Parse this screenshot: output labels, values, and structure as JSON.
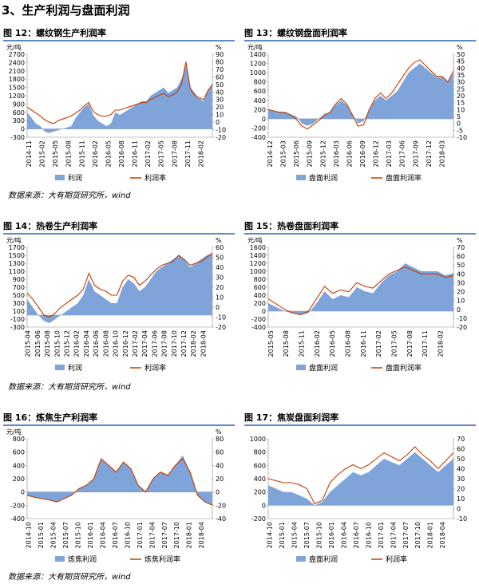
{
  "section_title": "3、生产利润与盘面利润",
  "sources": [
    "数据来源：大有期货研究所，wind",
    "数据来源：大有期货研究所，wind",
    "数据来源：大有期货研究所，wind"
  ],
  "colors": {
    "area": "#7fa4d9",
    "line": "#c23b00",
    "rule": "#5b8cc8"
  },
  "chart_data": [
    {
      "figure": "图 12：螺纹钢生产利润率",
      "type": "area+line",
      "left_unit": "元/吨",
      "right_unit": "%",
      "left_ylim": [
        -300,
        2700
      ],
      "left_ticks": [
        "2700",
        "2400",
        "2100",
        "1800",
        "1500",
        "1200",
        "900",
        "600",
        "300",
        "0",
        "-300"
      ],
      "right_ylim": [
        -20,
        90
      ],
      "right_ticks": [
        "90",
        "80",
        "70",
        "60",
        "50",
        "40",
        "30",
        "20",
        "10",
        "0",
        "-10",
        "-20"
      ],
      "x_labels": [
        "2014-11",
        "2015-02",
        "2015-05",
        "2015-08",
        "2015-11",
        "2016-02",
        "2016-05",
        "2016-08",
        "2016-11",
        "2017-02",
        "2017-05",
        "2017-08",
        "2017-11",
        "2018-02"
      ],
      "series": [
        {
          "name": "利润",
          "kind": "area",
          "axis": "left",
          "values": [
            600,
            400,
            200,
            100,
            -100,
            -150,
            -100,
            -50,
            0,
            50,
            100,
            400,
            600,
            800,
            900,
            500,
            300,
            200,
            100,
            200,
            600,
            500,
            600,
            700,
            800,
            900,
            1000,
            1000,
            1200,
            1300,
            1400,
            1500,
            1300,
            1400,
            1500,
            1800,
            2300,
            1500,
            1300,
            1100,
            1000,
            1400,
            1600
          ]
        },
        {
          "name": "利润率",
          "kind": "line",
          "axis": "right",
          "values": [
            20,
            16,
            12,
            8,
            3,
            0,
            -2,
            2,
            4,
            6,
            8,
            12,
            16,
            22,
            26,
            14,
            10,
            8,
            8,
            10,
            16,
            16,
            18,
            20,
            22,
            24,
            26,
            26,
            30,
            33,
            36,
            38,
            34,
            36,
            40,
            50,
            80,
            44,
            36,
            32,
            30,
            42,
            50
          ]
        }
      ]
    },
    {
      "figure": "图 13：螺纹钢盘面利润率",
      "type": "area+line",
      "left_unit": "元/吨",
      "right_unit": "%",
      "left_ylim": [
        -400,
        1400
      ],
      "left_ticks": [
        "1400",
        "1200",
        "1000",
        "800",
        "600",
        "400",
        "200",
        "0",
        "-200",
        "-400"
      ],
      "right_ylim": [
        -10,
        50
      ],
      "right_ticks": [
        "50",
        "45",
        "40",
        "35",
        "30",
        "25",
        "20",
        "15",
        "10",
        "5",
        "0",
        "-5",
        "-10"
      ],
      "x_labels": [
        "2014-12",
        "2015-03",
        "2015-06",
        "2015-09",
        "2015-12",
        "2016-03",
        "2016-06",
        "2016-09",
        "2016-12",
        "2017-03",
        "2017-06",
        "2017-09",
        "2017-12",
        "2018-03"
      ],
      "series": [
        {
          "name": "盘面利润",
          "kind": "area",
          "axis": "left",
          "values": [
            200,
            180,
            150,
            150,
            100,
            50,
            -100,
            -150,
            -100,
            0,
            100,
            150,
            300,
            400,
            300,
            100,
            -100,
            -50,
            200,
            400,
            500,
            400,
            500,
            600,
            800,
            1000,
            1100,
            1200,
            1100,
            1000,
            900,
            900,
            800,
            1000
          ]
        },
        {
          "name": "盘面利润率",
          "kind": "line",
          "axis": "right",
          "values": [
            10,
            9,
            8,
            8,
            6,
            3,
            -2,
            -4,
            -1,
            2,
            6,
            8,
            14,
            18,
            14,
            6,
            -2,
            -1,
            10,
            18,
            22,
            18,
            22,
            28,
            34,
            40,
            44,
            46,
            42,
            38,
            34,
            34,
            30,
            38
          ]
        }
      ]
    },
    {
      "figure": "图 14：热卷生产利润率",
      "type": "area+line",
      "left_unit": "元/吨",
      "right_unit": "%",
      "left_ylim": [
        -300,
        1700
      ],
      "left_ticks": [
        "1700",
        "1500",
        "1300",
        "1100",
        "900",
        "700",
        "500",
        "300",
        "100",
        "-100",
        "-300"
      ],
      "right_ylim": [
        -20,
        60
      ],
      "right_ticks": [
        "60",
        "50",
        "40",
        "30",
        "20",
        "10",
        "0",
        "-10",
        "-20"
      ],
      "x_labels": [
        "2015-04",
        "2015-06",
        "2015-08",
        "2015-10",
        "2015-12",
        "2016-02",
        "2016-04",
        "2016-06",
        "2016-08",
        "2016-10",
        "2016-12",
        "2017-02",
        "2017-04",
        "2017-06",
        "2017-08",
        "2017-10",
        "2017-12",
        "2018-02",
        "2018-04"
      ],
      "series": [
        {
          "name": "利润",
          "kind": "area",
          "axis": "left",
          "values": [
            400,
            200,
            0,
            -150,
            -200,
            -100,
            0,
            100,
            200,
            300,
            500,
            900,
            600,
            500,
            400,
            300,
            300,
            700,
            900,
            800,
            600,
            700,
            900,
            1100,
            1200,
            1300,
            1400,
            1500,
            1400,
            1200,
            1300,
            1400,
            1500,
            1550
          ]
        },
        {
          "name": "利润率",
          "kind": "line",
          "axis": "right",
          "values": [
            14,
            8,
            0,
            -8,
            -10,
            -6,
            0,
            4,
            8,
            12,
            18,
            34,
            22,
            18,
            16,
            12,
            12,
            26,
            32,
            30,
            22,
            26,
            32,
            38,
            42,
            44,
            46,
            52,
            48,
            42,
            44,
            46,
            50,
            54
          ]
        }
      ]
    },
    {
      "figure": "图 15：热卷盘面利润率",
      "type": "area+line",
      "left_unit": "元/吨",
      "right_unit": "%",
      "left_ylim": [
        -400,
        1600
      ],
      "left_ticks": [
        "1600",
        "1400",
        "1200",
        "1000",
        "800",
        "600",
        "400",
        "200",
        "0",
        "-200",
        "-400"
      ],
      "right_ylim": [
        -20,
        70
      ],
      "right_ticks": [
        "70",
        "60",
        "50",
        "40",
        "30",
        "20",
        "10",
        "0",
        "-10",
        "-20"
      ],
      "x_labels": [
        "2015-05",
        "2015-08",
        "2015-11",
        "2016-02",
        "2016-05",
        "2016-08",
        "2016-11",
        "2017-02",
        "2017-05",
        "2017-08",
        "2017-11",
        "2018-02"
      ],
      "series": [
        {
          "name": "盘面利润",
          "kind": "area",
          "axis": "left",
          "values": [
            200,
            100,
            0,
            -50,
            -100,
            -50,
            200,
            500,
            300,
            400,
            350,
            600,
            500,
            450,
            700,
            900,
            1000,
            1200,
            1100,
            1000,
            1000,
            1000,
            900,
            950
          ]
        },
        {
          "name": "盘面利润率",
          "kind": "line",
          "axis": "right",
          "values": [
            12,
            6,
            0,
            -4,
            -6,
            -2,
            12,
            26,
            18,
            22,
            20,
            30,
            26,
            24,
            32,
            40,
            44,
            48,
            44,
            40,
            40,
            40,
            36,
            38
          ]
        }
      ]
    },
    {
      "figure": "图 16：炼焦生产利润率",
      "type": "area+line",
      "left_unit": "元/吨",
      "right_unit": "%",
      "left_ylim": [
        -400,
        800
      ],
      "left_ticks": [
        "800",
        "600",
        "400",
        "200",
        "0",
        "-200",
        "-400"
      ],
      "right_ylim": [
        -40,
        80
      ],
      "right_ticks": [
        "80",
        "60",
        "40",
        "20",
        "0",
        "-20",
        "-40"
      ],
      "x_labels": [
        "2014-10",
        "2015-01",
        "2015-04",
        "2015-07",
        "2015-10",
        "2016-01",
        "2016-04",
        "2016-07",
        "2016-10",
        "2017-01",
        "2017-04",
        "2017-07",
        "2017-10",
        "2018-01",
        "2018-04"
      ],
      "series": [
        {
          "name": "炼焦利润",
          "kind": "area",
          "axis": "left",
          "values": [
            -50,
            -80,
            -100,
            -120,
            -150,
            -100,
            -50,
            50,
            100,
            200,
            500,
            400,
            300,
            450,
            350,
            100,
            0,
            200,
            300,
            250,
            400,
            550,
            300,
            -50,
            -150,
            -200
          ]
        },
        {
          "name": "炼焦利润率",
          "kind": "line",
          "axis": "right",
          "values": [
            -5,
            -8,
            -10,
            -12,
            -15,
            -10,
            -5,
            5,
            10,
            20,
            50,
            40,
            30,
            45,
            35,
            10,
            0,
            20,
            30,
            25,
            40,
            50,
            30,
            -5,
            -15,
            -20
          ]
        }
      ]
    },
    {
      "figure": "图 17：焦炭盘面利润率",
      "type": "area+line",
      "left_unit": "",
      "right_unit": "",
      "left_ylim": [
        -200,
        1000
      ],
      "left_ticks": [
        "1000",
        "800",
        "600",
        "400",
        "200",
        "0",
        "-200"
      ],
      "right_ylim": [
        -10,
        70
      ],
      "right_ticks": [
        "70",
        "60",
        "50",
        "40",
        "30",
        "20",
        "10",
        "0",
        "-10"
      ],
      "x_labels": [
        "2014-10",
        "2015-01",
        "2015-04",
        "2015-07",
        "2015-10",
        "2016-01",
        "2016-04",
        "2016-07",
        "2016-10",
        "2017-01",
        "2017-04",
        "2017-07",
        "2017-10",
        "2018-01",
        "2018-04"
      ],
      "series": [
        {
          "name": "盘面利润",
          "kind": "area",
          "axis": "left",
          "values": [
            300,
            250,
            200,
            200,
            150,
            100,
            0,
            50,
            200,
            300,
            400,
            500,
            450,
            500,
            600,
            700,
            650,
            600,
            700,
            800,
            700,
            600,
            500,
            600,
            700
          ]
        },
        {
          "name": "利润率",
          "kind": "line",
          "axis": "right",
          "values": [
            30,
            28,
            26,
            26,
            24,
            20,
            5,
            8,
            26,
            34,
            40,
            44,
            40,
            44,
            50,
            56,
            52,
            48,
            54,
            62,
            54,
            48,
            40,
            48,
            56
          ]
        }
      ]
    }
  ]
}
